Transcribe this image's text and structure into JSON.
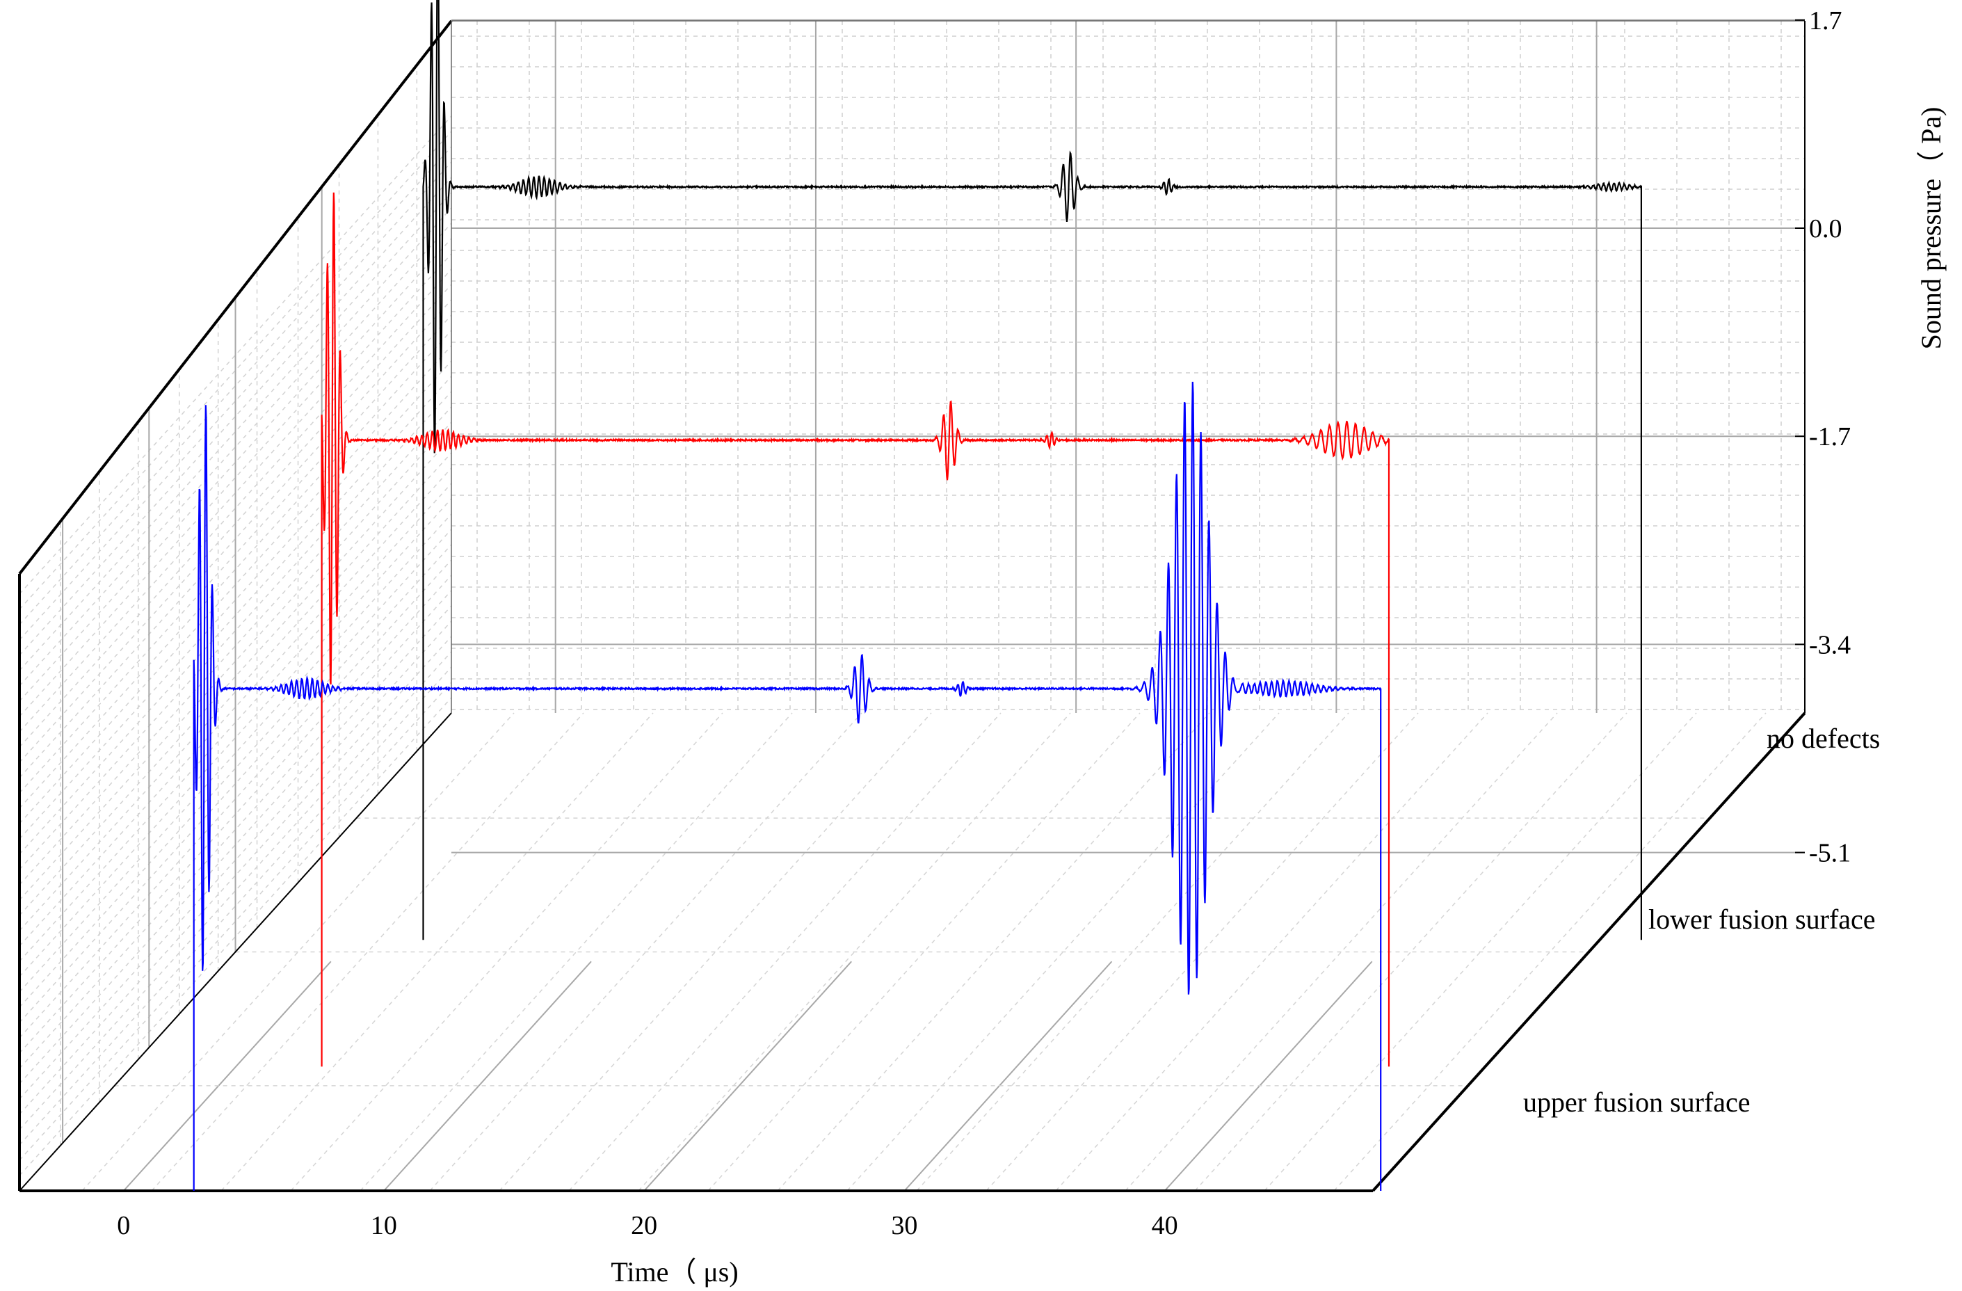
{
  "chart_data": {
    "type": "line",
    "style": "3D waterfall (stacked traces along a depth axis)",
    "xlabel": "Time（ μs)",
    "ylabel": "Sound pressure（ Pa)",
    "x_ticks": [
      "0",
      "10",
      "20",
      "30",
      "40"
    ],
    "y_ticks": [
      "1.7",
      "0.0",
      "-1.7",
      "-3.4",
      "-5.1"
    ],
    "x_range_us": [
      -4,
      48
    ],
    "grid": true,
    "series": [
      {
        "name": "no defects",
        "color": "#000000",
        "step_at_us": 2.8,
        "drop_at_us": 49.6,
        "echoes": [
          {
            "t_us": 3.3,
            "amp_pa": 2.2,
            "width_us": 0.28,
            "freq_cycles_per_us": 4.0
          },
          {
            "t_us": 7.2,
            "amp_pa": 0.08,
            "width_us": 0.9,
            "freq_cycles_per_us": 5.0
          },
          {
            "t_us": 27.6,
            "amp_pa": 0.28,
            "width_us": 0.3,
            "freq_cycles_per_us": 3.5
          },
          {
            "t_us": 31.4,
            "amp_pa": 0.06,
            "width_us": 0.2,
            "freq_cycles_per_us": 5.0
          },
          {
            "t_us": 48.5,
            "amp_pa": 0.03,
            "width_us": 0.8,
            "freq_cycles_per_us": 5.0
          }
        ]
      },
      {
        "name": "lower fusion surface",
        "color": "#ff0000",
        "step_at_us": 3.3,
        "drop_at_us": 44.3,
        "echoes": [
          {
            "t_us": 3.7,
            "amp_pa": 2.0,
            "width_us": 0.3,
            "freq_cycles_per_us": 4.0
          },
          {
            "t_us": 7.9,
            "amp_pa": 0.08,
            "width_us": 0.9,
            "freq_cycles_per_us": 5.0
          },
          {
            "t_us": 27.4,
            "amp_pa": 0.32,
            "width_us": 0.3,
            "freq_cycles_per_us": 3.5
          },
          {
            "t_us": 31.3,
            "amp_pa": 0.06,
            "width_us": 0.2,
            "freq_cycles_per_us": 5.0
          },
          {
            "t_us": 42.6,
            "amp_pa": 0.14,
            "width_us": 1.2,
            "freq_cycles_per_us": 3.0
          }
        ]
      },
      {
        "name": "upper fusion surface",
        "color": "#0000ff",
        "step_at_us": 2.7,
        "drop_at_us": 48.3,
        "echoes": [
          {
            "t_us": 3.1,
            "amp_pa": 2.3,
            "width_us": 0.3,
            "freq_cycles_per_us": 4.0
          },
          {
            "t_us": 7.0,
            "amp_pa": 0.08,
            "width_us": 0.9,
            "freq_cycles_per_us": 5.0
          },
          {
            "t_us": 28.3,
            "amp_pa": 0.28,
            "width_us": 0.3,
            "freq_cycles_per_us": 3.5
          },
          {
            "t_us": 32.2,
            "amp_pa": 0.06,
            "width_us": 0.2,
            "freq_cycles_per_us": 5.0
          },
          {
            "t_us": 41.0,
            "amp_pa": 2.4,
            "width_us": 0.9,
            "freq_cycles_per_us": 3.2
          },
          {
            "t_us": 44.5,
            "amp_pa": 0.06,
            "width_us": 1.6,
            "freq_cycles_per_us": 4.5
          }
        ]
      }
    ]
  }
}
